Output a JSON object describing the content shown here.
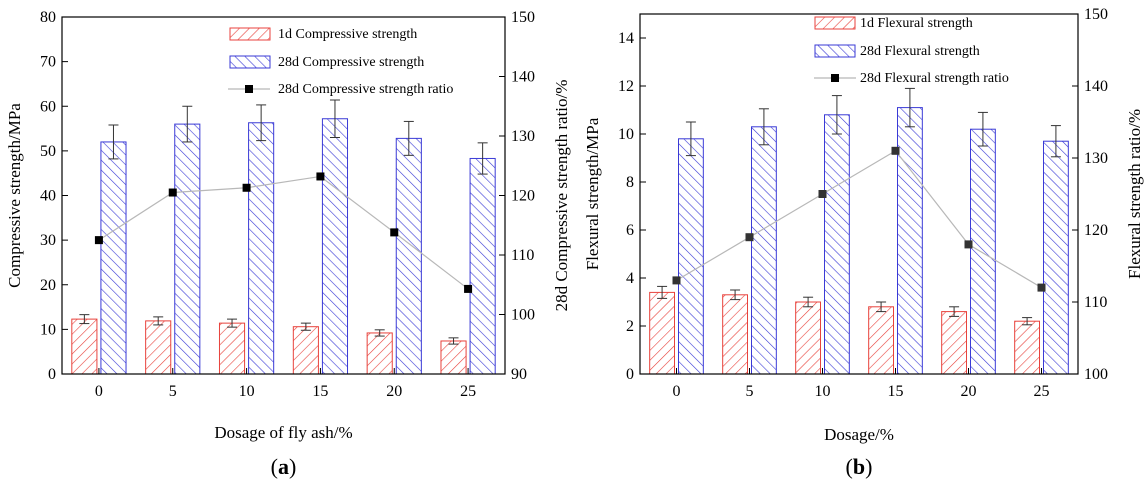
{
  "colors": {
    "red": "#e8423c",
    "blue": "#3a3ad6",
    "line": "#b8b8b8",
    "marker": "#000000"
  },
  "chart_data": [
    {
      "type": "bar",
      "panel_label": "(a)",
      "categories": [
        "0",
        "5",
        "10",
        "15",
        "20",
        "25"
      ],
      "xlabel": "Dosage of fly ash/%",
      "ylabel": "Compressive strength/MPa",
      "y2label": "28d Compressive strength ratio/%",
      "ylim": [
        0,
        80
      ],
      "yticks": [
        "0",
        "10",
        "20",
        "30",
        "40",
        "50",
        "60",
        "70",
        "80"
      ],
      "y2lim": [
        90,
        150
      ],
      "y2ticks": [
        "90",
        "100",
        "110",
        "120",
        "130",
        "140",
        "150"
      ],
      "legend_position": "top-right",
      "series": [
        {
          "name": "1d Compressive strength",
          "kind": "bar",
          "axis": "left",
          "hatch": "red",
          "values": [
            12.3,
            11.9,
            11.4,
            10.6,
            9.2,
            7.4
          ],
          "errors": [
            1.0,
            0.9,
            0.9,
            0.8,
            0.7,
            0.7
          ]
        },
        {
          "name": "28d Compressive strength",
          "kind": "bar",
          "axis": "left",
          "hatch": "blue",
          "values": [
            52.0,
            56.0,
            56.3,
            57.2,
            52.8,
            48.3
          ],
          "errors": [
            3.8,
            4.0,
            4.0,
            4.2,
            3.8,
            3.5
          ]
        },
        {
          "name": "28d Compressive strength ratio",
          "kind": "line",
          "axis": "right",
          "values": [
            112.5,
            120.5,
            121.3,
            123.2,
            113.8,
            104.3
          ]
        }
      ]
    },
    {
      "type": "bar",
      "panel_label": "(b)",
      "categories": [
        "0",
        "5",
        "10",
        "15",
        "20",
        "25"
      ],
      "xlabel": "Dosage/%",
      "ylabel": "Flexural strength/MPa",
      "y2label": "Flexural strength ratio/%",
      "ylim": [
        0,
        15
      ],
      "yticks": [
        "0",
        "2",
        "4",
        "6",
        "8",
        "10",
        "12",
        "14"
      ],
      "y2lim": [
        100,
        150
      ],
      "y2ticks": [
        "100",
        "110",
        "120",
        "130",
        "140",
        "150"
      ],
      "legend_position": "top-right",
      "series": [
        {
          "name": "1d Flexural strength",
          "kind": "bar",
          "axis": "left",
          "hatch": "red",
          "values": [
            3.4,
            3.3,
            3.0,
            2.8,
            2.6,
            2.2
          ],
          "errors": [
            0.25,
            0.2,
            0.2,
            0.2,
            0.2,
            0.15
          ]
        },
        {
          "name": "28d Flexural strength",
          "kind": "bar",
          "axis": "left",
          "hatch": "blue",
          "values": [
            9.8,
            10.3,
            10.8,
            11.1,
            10.2,
            9.7
          ],
          "errors": [
            0.7,
            0.75,
            0.8,
            0.8,
            0.7,
            0.65
          ]
        },
        {
          "name": "28d Flexural strength ratio",
          "kind": "line",
          "axis": "right",
          "values": [
            113.0,
            119.0,
            125.0,
            131.0,
            118.0,
            112.0
          ]
        }
      ]
    }
  ]
}
